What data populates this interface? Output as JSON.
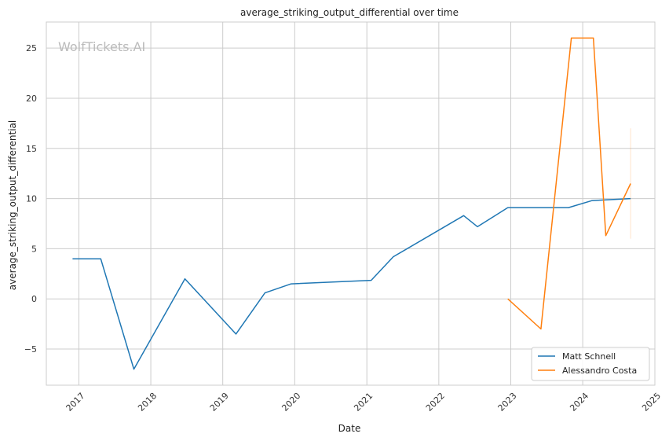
{
  "watermark": "WolfTickets.AI",
  "chart_data": {
    "type": "line",
    "title": "average_striking_output_differential over time",
    "xlabel": "Date",
    "ylabel": "average_striking_output_differential",
    "xlim": [
      "2016-07-20",
      "2025-01-01"
    ],
    "ylim": [
      -8.6,
      27.6
    ],
    "x_ticks": [
      "2017",
      "2018",
      "2019",
      "2020",
      "2021",
      "2022",
      "2023",
      "2024",
      "2025"
    ],
    "y_ticks": [
      -5,
      0,
      5,
      10,
      15,
      20,
      25
    ],
    "y_tick_labels": [
      "−5",
      "0",
      "5",
      "10",
      "15",
      "20",
      "25"
    ],
    "grid": true,
    "legend_position": "bottom-right",
    "series": [
      {
        "name": "Matt Schnell",
        "color": "#1f77b4",
        "points": [
          {
            "x": "2016-11-30",
            "y": 4.0
          },
          {
            "x": "2017-04-22",
            "y": 4.0
          },
          {
            "x": "2017-10-07",
            "y": -7.0
          },
          {
            "x": "2018-06-23",
            "y": 2.0
          },
          {
            "x": "2019-03-09",
            "y": -3.5
          },
          {
            "x": "2019-08-03",
            "y": 0.6
          },
          {
            "x": "2019-12-14",
            "y": 1.5
          },
          {
            "x": "2021-01-23",
            "y": 1.85
          },
          {
            "x": "2021-05-15",
            "y": 4.2
          },
          {
            "x": "2022-05-07",
            "y": 8.3
          },
          {
            "x": "2022-07-16",
            "y": 7.2
          },
          {
            "x": "2022-12-17",
            "y": 9.1
          },
          {
            "x": "2023-10-21",
            "y": 9.1
          },
          {
            "x": "2024-02-17",
            "y": 9.8
          },
          {
            "x": "2024-08-31",
            "y": 10.0
          }
        ]
      },
      {
        "name": "Alessandro Costa",
        "color": "#ff7f0e",
        "points": [
          {
            "x": "2022-12-17",
            "y": 0.0
          },
          {
            "x": "2023-06-03",
            "y": -3.0
          },
          {
            "x": "2023-11-04",
            "y": 26.0
          },
          {
            "x": "2024-02-24",
            "y": 26.0
          },
          {
            "x": "2024-04-27",
            "y": 6.3
          },
          {
            "x": "2024-08-31",
            "y": 11.5
          }
        ],
        "confidence_band": {
          "x": "2024-08-31",
          "y_low": 6.0,
          "y_high": 17.0
        }
      }
    ]
  }
}
